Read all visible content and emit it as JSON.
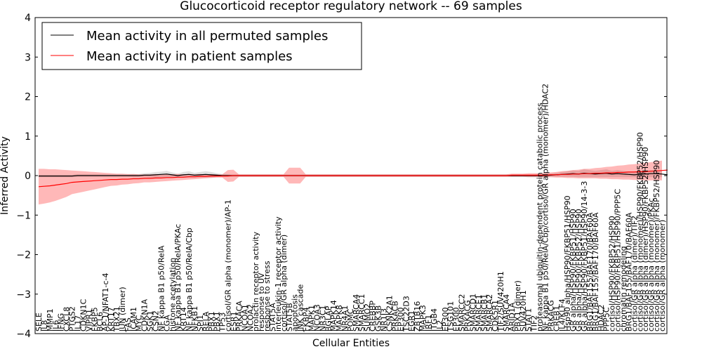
{
  "chart_data": {
    "type": "line",
    "title": "Glucocorticoid receptor regulatory network -- 69 samples",
    "xlabel": "Cellular Entities",
    "ylabel": "Inferred Activity",
    "ylim": [
      -4,
      4
    ],
    "yticks": [
      4,
      3,
      2,
      1,
      0,
      -1,
      -2,
      -3,
      -4
    ],
    "grid": false,
    "legend_position": "top-left",
    "entities": [
      "SELE",
      "IL8",
      "MMP1",
      "IL6",
      "IFNG",
      "CXCL8",
      "PTGS2",
      "IL17",
      "CDKN1C",
      "VIPR1",
      "FKBP5",
      "BCL6",
      "AP-1/NFAT1-c-4",
      "KRT17",
      "TBX21",
      "JUN (dimer)",
      "FAS",
      "ICAM1",
      "MYC",
      "CDKN1A",
      "SGK1",
      "CSN2",
      "NF kappa B1 p50/RelA",
      "CGA",
      "histone acetylation",
      "NF kappa B1 p50/RelA/PKAc",
      "KRT14",
      "NF kappa B1 p50/RelA/Cbp",
      "NFKB1",
      "SPI1",
      "RELA",
      "PBX1",
      "PBX1",
      "TP53",
      "cortisol/GR alpha (monomer)/AP-1",
      "ESR1",
      "PRKACA",
      "NCOA1",
      "NCOA2",
      "prolactin receptor activity",
      "response to UV",
      "response to stress",
      "STAT5A",
      "interleukin-1 receptor activity",
      "cortisol/GR alpha (dimer)",
      "STAT5B",
      "apoptosis",
      "JNK cascade",
      "FKBP4",
      "MAPK1",
      "NCOA3",
      "NR3C1",
      "BGLAP",
      "MAPK14",
      "MAPK8",
      "NR4A1",
      "POMC",
      "SMARCA4",
      "SMARCC1",
      "SUMO2",
      "CREBBP",
      "GSK3B",
      "NR1I3",
      "CSNK2A1",
      "PRKACB",
      "EP300",
      "TSC22D3",
      "EGR1",
      "ZBTB16",
      "MAPK3",
      "IRF1",
      "ITGB4",
      "IL2",
      "EP300",
      "TSG101",
      "EP300",
      "SMARCC2",
      "PRKACG",
      "SMARCD1",
      "SMARCE1",
      "SMARCB1",
      "SMARCA2",
      "CDK5R1",
      "TIF2/SUV420H1",
      "SMARCA4",
      "ARID1A",
      "PBX1 (dimer)",
      "SUV420H1",
      "STAT1",
      "TIF2",
      "proteasomal ubiquitin-dependent protein catabolic process",
      "NF kappa B1 p50/RelA/Cbp/cortisol/GR alpha (monomer)/HDAC2",
      "PRKACG",
      "CREB1",
      "IL4/KLF4",
      "Hsp90 alpha/HSP90/FKBP51/HSP90",
      "GR alpha/HSP90/FKBP51/HSP90",
      "GR alpha/HSP90/FKBP52/HSP90",
      "GR alpha/HSP90/FKBP51/HSP90/14-3-3",
      "BRG1/BAF155/BAF170/BAF60A",
      "BRG1/BAF155/BAF170/BAF60A",
      "HDAC2",
      "PPP5C",
      "cortisol/HSP90/FKBP52/HSP90",
      "cortisol/HSP90/FKBP51/HSP90/PPP5C",
      "chromatin remodeling",
      "BRG1/BAF155/BAF170/BAF60A",
      "cortisol/GR alpha (dimer)/TIF2",
      "cortisol/GR alpha (monomer)/HSP90/FKBP52/HSP90",
      "cortisol/GR alpha (dimer)/HSP90/FKBP52/HSP90",
      "cortisol/GR alpha (monomer)/PKAc",
      "cortisol/GR alpha (monomer)/FKBP52/HSP90",
      "cortisol/GR alpha (monomer)"
    ],
    "series": [
      {
        "name": "Mean activity in all permuted samples",
        "color": "#000000",
        "mean": [
          -0.01,
          -0.01,
          -0.01,
          -0.01,
          -0.01,
          -0.01,
          -0.01,
          0.0,
          0.0,
          0.0,
          0.0,
          0.0,
          0.0,
          0.0,
          0.0,
          0.0,
          0.0,
          0.0,
          0.0,
          0.01,
          0.01,
          0.02,
          0.03,
          0.04,
          0.02,
          0.0,
          0.02,
          0.03,
          0.01,
          0.02,
          0.03,
          0.02,
          0.01,
          0.0,
          0.0,
          0.0,
          0.0,
          0.0,
          0.0,
          0.0,
          0.0,
          0.0,
          0.0,
          0.0,
          0.0,
          0.0,
          0.0,
          0.0,
          0.0,
          0.0,
          0.0,
          0.0,
          0.0,
          0.0,
          0.0,
          0.0,
          0.0,
          0.0,
          0.0,
          0.0,
          0.0,
          0.0,
          0.0,
          0.0,
          0.0,
          0.0,
          0.0,
          0.0,
          0.0,
          0.0,
          0.0,
          0.0,
          0.0,
          0.0,
          0.0,
          0.0,
          0.0,
          0.0,
          0.0,
          0.0,
          0.0,
          0.0,
          0.0,
          0.0,
          0.0,
          0.0,
          0.0,
          0.0,
          0.0,
          0.0,
          0.0,
          0.0,
          0.01,
          0.02,
          0.03,
          0.04,
          0.05,
          0.04,
          0.06,
          0.05,
          0.04,
          0.05,
          0.06,
          0.04,
          0.05,
          0.04,
          0.03,
          0.02,
          0.03,
          0.04,
          0.05,
          0.05,
          0.04,
          0.02
        ],
        "sd": [
          0.03,
          0.03,
          0.03,
          0.03,
          0.03,
          0.03,
          0.03,
          0.03,
          0.03,
          0.03,
          0.03,
          0.03,
          0.03,
          0.03,
          0.03,
          0.03,
          0.03,
          0.04,
          0.04,
          0.05,
          0.06,
          0.07,
          0.07,
          0.08,
          0.06,
          0.05,
          0.07,
          0.08,
          0.06,
          0.07,
          0.08,
          0.07,
          0.05,
          0.04,
          0.03,
          0.03,
          0.03,
          0.03,
          0.03,
          0.03,
          0.03,
          0.03,
          0.03,
          0.03,
          0.03,
          0.03,
          0.03,
          0.03,
          0.03,
          0.03,
          0.03,
          0.03,
          0.03,
          0.03,
          0.03,
          0.03,
          0.03,
          0.03,
          0.03,
          0.03,
          0.03,
          0.03,
          0.03,
          0.03,
          0.03,
          0.03,
          0.03,
          0.03,
          0.03,
          0.03,
          0.03,
          0.03,
          0.03,
          0.03,
          0.03,
          0.03,
          0.03,
          0.03,
          0.03,
          0.03,
          0.03,
          0.03,
          0.03,
          0.03,
          0.03,
          0.03,
          0.03,
          0.03,
          0.03,
          0.03,
          0.03,
          0.03,
          0.04,
          0.05,
          0.06,
          0.07,
          0.08,
          0.08,
          0.1,
          0.09,
          0.08,
          0.09,
          0.1,
          0.08,
          0.09,
          0.08,
          0.07,
          0.06,
          0.07,
          0.08,
          0.09,
          0.09,
          0.08,
          0.06
        ]
      },
      {
        "name": "Mean activity in patient samples",
        "color": "#ff0000",
        "mean": [
          -0.28,
          -0.27,
          -0.26,
          -0.24,
          -0.22,
          -0.2,
          -0.17,
          -0.16,
          -0.15,
          -0.14,
          -0.13,
          -0.12,
          -0.11,
          -0.1,
          -0.1,
          -0.09,
          -0.09,
          -0.08,
          -0.08,
          -0.07,
          -0.07,
          -0.06,
          -0.06,
          -0.05,
          -0.05,
          -0.04,
          -0.04,
          -0.03,
          -0.03,
          -0.02,
          -0.02,
          -0.01,
          -0.01,
          -0.01,
          -0.01,
          0.0,
          0.0,
          0.0,
          0.0,
          0.0,
          0.0,
          0.0,
          0.0,
          0.0,
          0.0,
          0.0,
          0.0,
          0.0,
          0.0,
          0.0,
          0.0,
          0.0,
          0.0,
          0.0,
          0.0,
          0.0,
          0.0,
          0.0,
          0.0,
          0.0,
          0.0,
          0.0,
          0.0,
          0.0,
          0.0,
          0.0,
          0.0,
          0.0,
          0.0,
          0.0,
          0.0,
          0.0,
          0.0,
          0.0,
          0.0,
          0.0,
          0.0,
          0.0,
          0.0,
          0.0,
          0.0,
          0.0,
          0.0,
          0.0,
          0.0,
          0.01,
          0.01,
          0.01,
          0.01,
          0.01,
          0.01,
          0.01,
          0.02,
          0.02,
          0.03,
          0.03,
          0.04,
          0.04,
          0.05,
          0.05,
          0.06,
          0.06,
          0.07,
          0.07,
          0.08,
          0.08,
          0.09,
          0.09,
          0.1,
          0.1,
          0.11,
          0.12,
          0.13,
          0.14
        ],
        "sd": [
          0.45,
          0.44,
          0.42,
          0.4,
          0.37,
          0.34,
          0.3,
          0.28,
          0.26,
          0.24,
          0.22,
          0.2,
          0.18,
          0.16,
          0.15,
          0.14,
          0.13,
          0.12,
          0.11,
          0.1,
          0.1,
          0.1,
          0.09,
          0.09,
          0.08,
          0.08,
          0.07,
          0.07,
          0.06,
          0.06,
          0.05,
          0.05,
          0.04,
          0.04,
          0.15,
          0.15,
          0.03,
          0.03,
          0.03,
          0.03,
          0.03,
          0.03,
          0.03,
          0.03,
          0.03,
          0.2,
          0.2,
          0.2,
          0.03,
          0.03,
          0.03,
          0.03,
          0.03,
          0.03,
          0.03,
          0.03,
          0.03,
          0.03,
          0.03,
          0.03,
          0.03,
          0.03,
          0.03,
          0.03,
          0.03,
          0.03,
          0.03,
          0.03,
          0.03,
          0.03,
          0.03,
          0.03,
          0.03,
          0.03,
          0.03,
          0.03,
          0.03,
          0.03,
          0.03,
          0.03,
          0.03,
          0.03,
          0.03,
          0.03,
          0.03,
          0.04,
          0.04,
          0.04,
          0.05,
          0.05,
          0.05,
          0.06,
          0.06,
          0.07,
          0.08,
          0.09,
          0.1,
          0.11,
          0.12,
          0.12,
          0.13,
          0.14,
          0.15,
          0.16,
          0.17,
          0.18,
          0.19,
          0.2,
          0.21,
          0.22,
          0.23,
          0.24,
          0.25,
          0.26
        ]
      }
    ]
  }
}
